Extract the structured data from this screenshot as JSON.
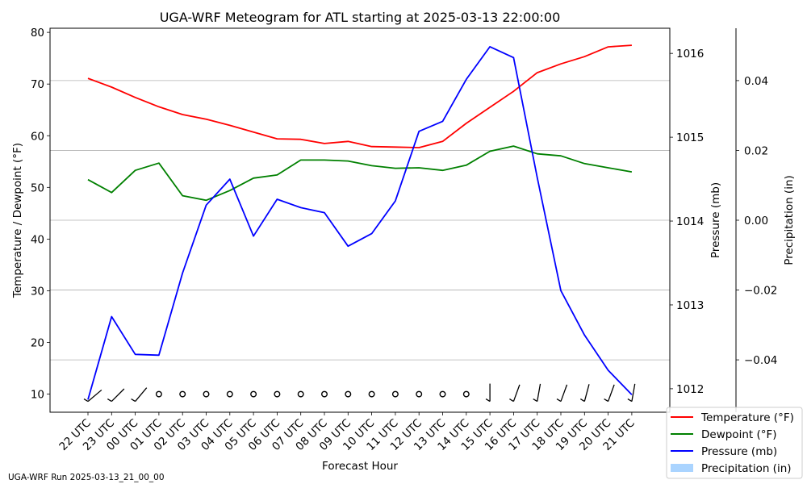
{
  "chart_data": {
    "type": "line",
    "title": "UGA-WRF Meteogram for ATL starting at 2025-03-13 22:00:00",
    "footer": "UGA-WRF Run 2025-03-13_21_00_00",
    "xlabel": "Forecast Hour",
    "categories": [
      "22 UTC",
      "23 UTC",
      "00 UTC",
      "01 UTC",
      "02 UTC",
      "03 UTC",
      "04 UTC",
      "05 UTC",
      "06 UTC",
      "07 UTC",
      "08 UTC",
      "09 UTC",
      "10 UTC",
      "11 UTC",
      "12 UTC",
      "13 UTC",
      "14 UTC",
      "15 UTC",
      "16 UTC",
      "17 UTC",
      "18 UTC",
      "19 UTC",
      "20 UTC",
      "21 UTC"
    ],
    "axes": {
      "left": {
        "label": "Temperature / Dewpoint (°F)",
        "ylim": [
          6.5,
          80.8
        ],
        "ticks": [
          10,
          20,
          30,
          40,
          50,
          60,
          70,
          80
        ],
        "tick_labels": [
          "10",
          "20",
          "30",
          "40",
          "50",
          "60",
          "70",
          "80"
        ]
      },
      "right1": {
        "label": "Pressure (mb)",
        "ylim": [
          1011.72,
          1016.3
        ],
        "ticks": [
          1012,
          1013,
          1014,
          1015,
          1016
        ],
        "tick_labels": [
          "1012",
          "1013",
          "1014",
          "1015",
          "1016"
        ]
      },
      "right2": {
        "label": "Precipitation (in)",
        "ylim": [
          -0.055,
          0.055
        ],
        "ticks": [
          -0.04,
          -0.02,
          0.0,
          0.02,
          0.04
        ],
        "tick_labels": [
          "−0.04",
          "−0.02",
          "0.00",
          "0.02",
          "0.04"
        ]
      }
    },
    "grid": true,
    "legend_position": "bottom-right",
    "series": [
      {
        "name": "Temperature (°F)",
        "axis": "left",
        "color": "#ff0000",
        "values": [
          71.1,
          69.4,
          67.4,
          65.6,
          64.1,
          63.2,
          62.0,
          60.7,
          59.4,
          59.3,
          58.5,
          58.9,
          57.9,
          57.8,
          57.7,
          58.9,
          62.4,
          65.5,
          68.6,
          72.2,
          73.9,
          75.3,
          77.2,
          77.5
        ]
      },
      {
        "name": "Dewpoint (°F)",
        "axis": "left",
        "color": "#008000",
        "values": [
          51.5,
          49.0,
          53.3,
          54.7,
          48.4,
          47.5,
          49.4,
          51.8,
          52.4,
          55.3,
          55.3,
          55.1,
          54.2,
          53.7,
          53.8,
          53.3,
          54.3,
          57.0,
          58.0,
          56.5,
          56.1,
          54.6,
          53.8,
          53.0
        ]
      },
      {
        "name": "Pressure (mb)",
        "axis": "right1",
        "color": "#0000ff",
        "values": [
          1011.87,
          1012.86,
          1012.41,
          1012.4,
          1013.38,
          1014.19,
          1014.5,
          1013.82,
          1014.26,
          1014.16,
          1014.1,
          1013.7,
          1013.85,
          1014.24,
          1015.07,
          1015.19,
          1015.69,
          1016.08,
          1015.95,
          1014.52,
          1013.17,
          1012.64,
          1012.22,
          1011.93
        ]
      },
      {
        "name": "Precipitation (in)",
        "axis": "right2",
        "color": "#aad4ff",
        "values": [
          0,
          0,
          0,
          0,
          0,
          0,
          0,
          0,
          0,
          0,
          0,
          0,
          0,
          0,
          0,
          0,
          0,
          0,
          0,
          0,
          0,
          0,
          0,
          0
        ]
      }
    ],
    "wind_barbs": {
      "y_level": 10,
      "calm": [
        false,
        false,
        false,
        true,
        true,
        true,
        true,
        true,
        true,
        true,
        true,
        true,
        true,
        true,
        true,
        true,
        true,
        false,
        false,
        false,
        false,
        false,
        false,
        false
      ],
      "direction_deg": [
        230,
        225,
        220,
        null,
        null,
        null,
        null,
        null,
        null,
        null,
        null,
        null,
        null,
        null,
        null,
        null,
        null,
        180,
        200,
        190,
        200,
        195,
        200,
        190
      ]
    }
  }
}
